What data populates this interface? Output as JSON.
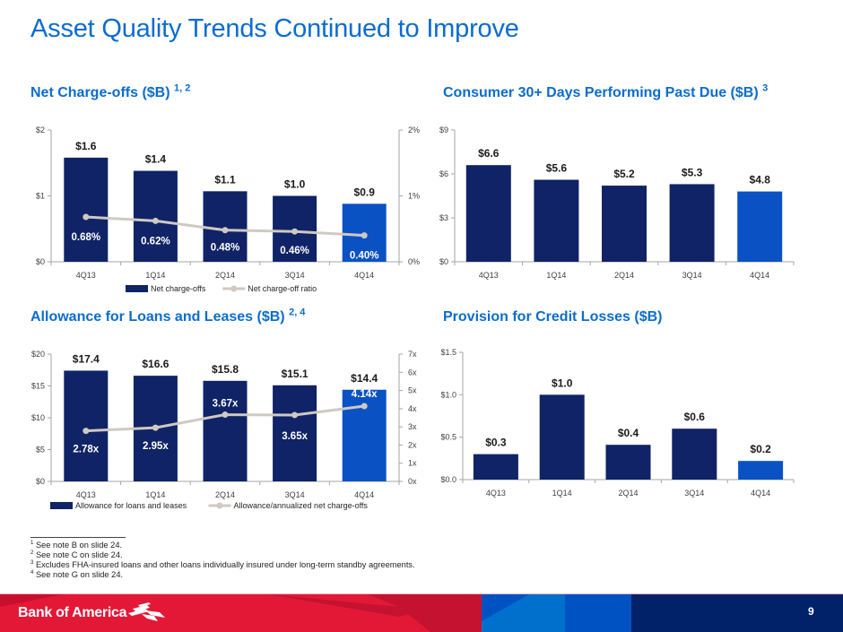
{
  "page": {
    "title": "Asset Quality Trends Continued to Improve",
    "page_number": "9",
    "brand": "Bank of America"
  },
  "colors": {
    "title_blue": "#0b6ccf",
    "bar_navy": "#0f2366",
    "bar_highlight": "#0a52c4",
    "line_gray": "#cfc9c2",
    "footer_red": "#e31837",
    "footer_dark_red": "#c41230",
    "footer_navy": "#012169"
  },
  "panels": {
    "nco": {
      "title": "Net Charge-offs ($B)",
      "sup": "1, 2"
    },
    "past_due": {
      "title": "Consumer 30+ Days Performing Past Due ($B)",
      "sup": "3"
    },
    "allowance": {
      "title": "Allowance for Loans and Leases ($B)",
      "sup": "2, 4"
    },
    "provision": {
      "title": "Provision for Credit Losses ($B)",
      "sup": ""
    }
  },
  "footnotes": [
    {
      "num": "1",
      "text": "See note B on slide 24."
    },
    {
      "num": "2",
      "text": "See note C on slide 24."
    },
    {
      "num": "3",
      "text": "Excludes FHA-insured loans and other loans individually insured under long-term standby agreements."
    },
    {
      "num": "4",
      "text": "See note G on slide 24."
    }
  ],
  "chart_data": [
    {
      "id": "nco",
      "type": "bar",
      "title": "Net Charge-offs ($B)",
      "categories": [
        "4Q13",
        "1Q14",
        "2Q14",
        "3Q14",
        "4Q14"
      ],
      "series": [
        {
          "name": "Net charge-offs",
          "kind": "bar",
          "axis": "left",
          "values": [
            1.58,
            1.38,
            1.07,
            1.0,
            0.88
          ],
          "labels": [
            "$1.6",
            "$1.4",
            "$1.1",
            "$1.0",
            "$0.9"
          ]
        },
        {
          "name": "Net charge-off ratio",
          "kind": "line",
          "axis": "right",
          "values": [
            0.68,
            0.62,
            0.48,
            0.46,
            0.4
          ],
          "labels": [
            "0.68%",
            "0.62%",
            "0.48%",
            "0.46%",
            "0.40%"
          ]
        }
      ],
      "left_axis": {
        "min": 0,
        "max": 2,
        "ticks": [
          0,
          1,
          2
        ],
        "tick_labels": [
          "$0",
          "$1",
          "$2"
        ]
      },
      "right_axis": {
        "min": 0,
        "max": 2,
        "ticks": [
          0,
          1,
          2
        ],
        "tick_labels": [
          "0%",
          "1%",
          "2%"
        ]
      },
      "highlight_last": true,
      "legend": "bottom",
      "grid": false
    },
    {
      "id": "past_due",
      "type": "bar",
      "title": "Consumer 30+ Days Performing Past Due ($B)",
      "categories": [
        "4Q13",
        "1Q14",
        "2Q14",
        "3Q14",
        "4Q14"
      ],
      "series": [
        {
          "name": "Consumer 30+ days performing past due",
          "kind": "bar",
          "axis": "left",
          "values": [
            6.6,
            5.6,
            5.2,
            5.3,
            4.8
          ],
          "labels": [
            "$6.6",
            "$5.6",
            "$5.2",
            "$5.3",
            "$4.8"
          ]
        }
      ],
      "left_axis": {
        "min": 0,
        "max": 9,
        "ticks": [
          0,
          3,
          6,
          9
        ],
        "tick_labels": [
          "$0",
          "$3",
          "$6",
          "$9"
        ]
      },
      "highlight_last": true,
      "legend": "none",
      "grid": false
    },
    {
      "id": "allowance",
      "type": "bar",
      "title": "Allowance for Loans and Leases ($B)",
      "categories": [
        "4Q13",
        "1Q14",
        "2Q14",
        "3Q14",
        "4Q14"
      ],
      "series": [
        {
          "name": "Allowance for loans and leases",
          "kind": "bar",
          "axis": "left",
          "values": [
            17.4,
            16.6,
            15.8,
            15.1,
            14.4
          ],
          "labels": [
            "$17.4",
            "$16.6",
            "$15.8",
            "$15.1",
            "$14.4"
          ]
        },
        {
          "name": "Allowance/annualized net charge-offs",
          "kind": "line",
          "axis": "right",
          "values": [
            2.78,
            2.95,
            3.67,
            3.65,
            4.14
          ],
          "labels": [
            "2.78x",
            "2.95x",
            "3.67x",
            "3.65x",
            "4.14x"
          ]
        }
      ],
      "left_axis": {
        "min": 0,
        "max": 20,
        "ticks": [
          0,
          5,
          10,
          15,
          20
        ],
        "tick_labels": [
          "$0",
          "$5",
          "$10",
          "$15",
          "$20"
        ]
      },
      "right_axis": {
        "min": 0,
        "max": 7,
        "ticks": [
          0,
          1,
          2,
          3,
          4,
          5,
          6,
          7
        ],
        "tick_labels": [
          "0x",
          "1x",
          "2x",
          "3x",
          "4x",
          "5x",
          "6x",
          "7x"
        ]
      },
      "highlight_last": true,
      "legend": "bottom",
      "grid": false
    },
    {
      "id": "provision",
      "type": "bar",
      "title": "Provision for Credit Losses ($B)",
      "categories": [
        "4Q13",
        "1Q14",
        "2Q14",
        "3Q14",
        "4Q14"
      ],
      "series": [
        {
          "name": "Provision for credit losses",
          "kind": "bar",
          "axis": "left",
          "values": [
            0.3,
            1.0,
            0.41,
            0.6,
            0.22
          ],
          "labels": [
            "$0.3",
            "$1.0",
            "$0.4",
            "$0.6",
            "$0.2"
          ]
        }
      ],
      "left_axis": {
        "min": 0,
        "max": 1.5,
        "ticks": [
          0,
          0.5,
          1.0,
          1.5
        ],
        "tick_labels": [
          "$0.0",
          "$0.5",
          "$1.0",
          "$1.5"
        ]
      },
      "highlight_last": true,
      "legend": "none",
      "grid": false
    }
  ]
}
